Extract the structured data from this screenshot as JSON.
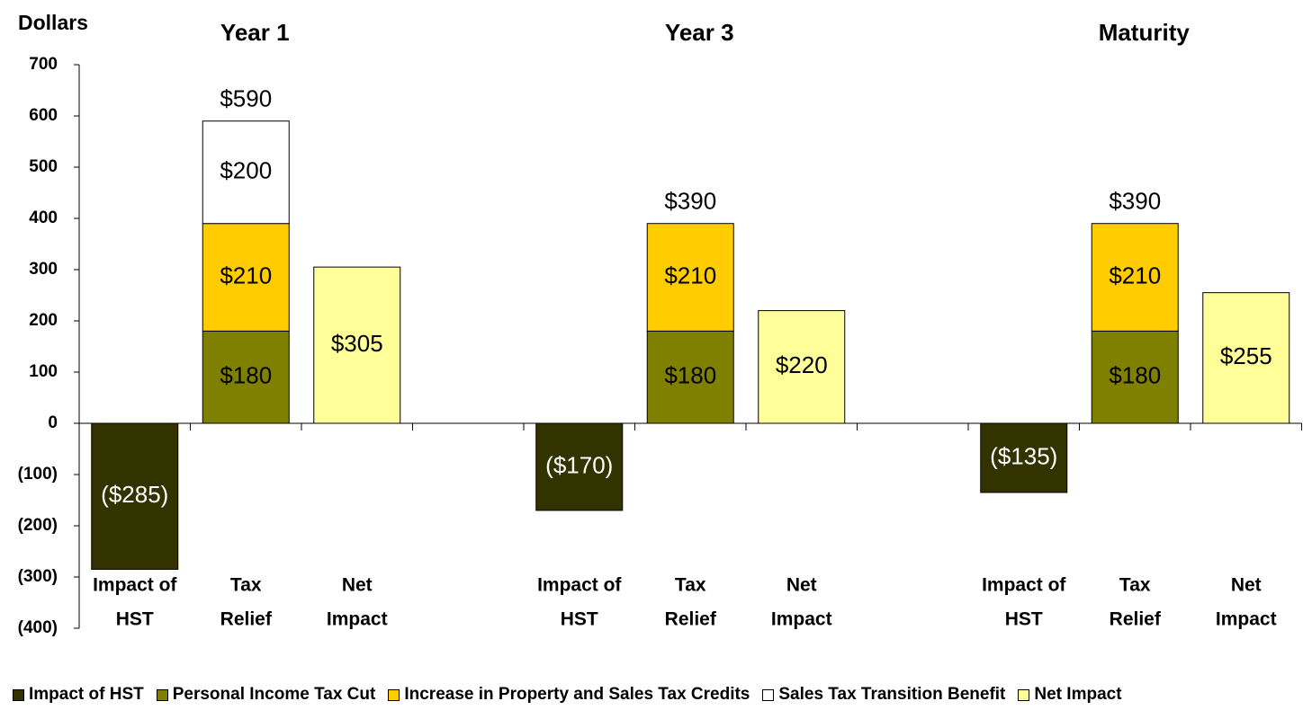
{
  "chart_data": {
    "type": "stacked_bar",
    "y_label": "Dollars",
    "group_labels": [
      {
        "text": "Year 1",
        "slot": 1
      },
      {
        "text": "Year 3",
        "slot": 5
      },
      {
        "text": "Maturity",
        "slot": 9
      }
    ],
    "categories": [
      [
        "Impact of",
        "HST"
      ],
      [
        "Tax",
        "Relief"
      ],
      [
        "Net",
        "Impact"
      ],
      null,
      [
        "Impact of",
        "HST"
      ],
      [
        "Tax",
        "Relief"
      ],
      [
        "Net",
        "Impact"
      ],
      null,
      [
        "Impact of",
        "HST"
      ],
      [
        "Tax",
        "Relief"
      ],
      [
        "Net",
        "Impact"
      ]
    ],
    "series": [
      {
        "name": "Impact of HST",
        "color": "#333300",
        "label_color": "#ffffff",
        "values": [
          -285,
          null,
          null,
          null,
          -170,
          null,
          null,
          null,
          -135,
          null,
          null
        ],
        "value_labels": [
          "($285)",
          null,
          null,
          null,
          "($170)",
          null,
          null,
          null,
          "($135)",
          null,
          null
        ]
      },
      {
        "name": "Personal Income Tax Cut",
        "color": "#808000",
        "label_color": "#000000",
        "values": [
          null,
          180,
          null,
          null,
          null,
          180,
          null,
          null,
          null,
          180,
          null
        ],
        "value_labels": [
          null,
          "$180",
          null,
          null,
          null,
          "$180",
          null,
          null,
          null,
          "$180",
          null
        ]
      },
      {
        "name": "Increase in Property and Sales Tax Credits",
        "color": "#ffcc00",
        "label_color": "#000000",
        "values": [
          null,
          210,
          null,
          null,
          null,
          210,
          null,
          null,
          null,
          210,
          null
        ],
        "value_labels": [
          null,
          "$210",
          null,
          null,
          null,
          "$210",
          null,
          null,
          null,
          "$210",
          null
        ]
      },
      {
        "name": "Sales Tax Transition Benefit",
        "color": "#ffffff",
        "label_color": "#000000",
        "values": [
          null,
          200,
          null,
          null,
          null,
          null,
          null,
          null,
          null,
          null,
          null
        ],
        "value_labels": [
          null,
          "$200",
          null,
          null,
          null,
          null,
          null,
          null,
          null,
          null,
          null
        ]
      },
      {
        "name": "Net Impact",
        "color": "#ffff99",
        "label_color": "#000000",
        "values": [
          null,
          null,
          305,
          null,
          null,
          null,
          220,
          null,
          null,
          null,
          255
        ],
        "value_labels": [
          null,
          null,
          "$305",
          null,
          null,
          null,
          "$220",
          null,
          null,
          null,
          "$255"
        ]
      }
    ],
    "totals": [
      null,
      590,
      null,
      null,
      null,
      390,
      null,
      null,
      null,
      390,
      null
    ],
    "total_labels": [
      null,
      "$590",
      null,
      null,
      null,
      "$390",
      null,
      null,
      null,
      "$390",
      null
    ],
    "ylim": [
      -400,
      700
    ],
    "yticks": [
      {
        "value": -400,
        "label": "(400)"
      },
      {
        "value": -300,
        "label": "(300)"
      },
      {
        "value": -200,
        "label": "(200)"
      },
      {
        "value": -100,
        "label": "(100)"
      },
      0,
      100,
      200,
      300,
      400,
      500,
      600,
      700
    ],
    "legend": "bottom"
  }
}
